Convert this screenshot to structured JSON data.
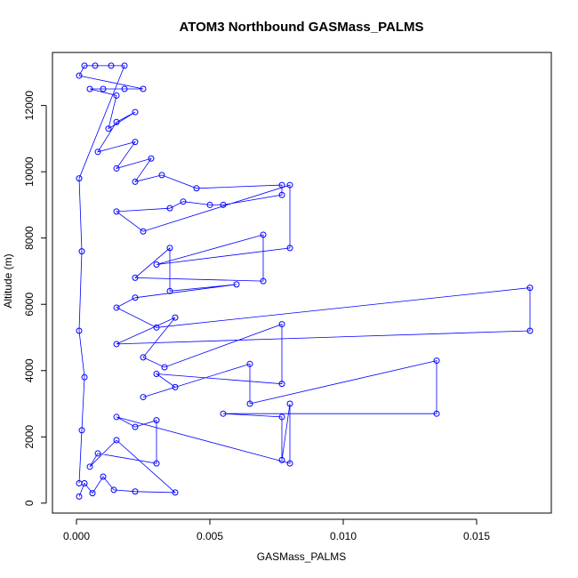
{
  "chart_data": {
    "type": "scatter",
    "title": "ATOM3 Northbound GASMass_PALMS",
    "xlabel": "GASMass_PALMS",
    "ylabel": "Altitude (m)",
    "xlim": [
      -0.0009,
      0.0178
    ],
    "ylim": [
      -300,
      13600
    ],
    "x_ticks": [
      0,
      0.005,
      0.01,
      0.015
    ],
    "x_tick_labels": [
      "0.000",
      "0.005",
      "0.010",
      "0.015"
    ],
    "y_ticks": [
      0,
      2000,
      4000,
      6000,
      8000,
      10000,
      12000
    ],
    "y_tick_labels": [
      "0",
      "2000",
      "4000",
      "6000",
      "8000",
      "10000",
      "12000"
    ],
    "marker": "open-circle",
    "lines": true,
    "color": "#0000ff",
    "points": [
      [
        0.0001,
        200
      ],
      [
        0.0003,
        600
      ],
      [
        0.0006,
        300
      ],
      [
        0.001,
        800
      ],
      [
        0.0014,
        400
      ],
      [
        0.0022,
        350
      ],
      [
        0.0037,
        320
      ],
      [
        0.0015,
        1900
      ],
      [
        0.0005,
        1100
      ],
      [
        0.0008,
        1500
      ],
      [
        0.003,
        1200
      ],
      [
        0.003,
        2500
      ],
      [
        0.0022,
        2300
      ],
      [
        0.0015,
        2600
      ],
      [
        0.008,
        1200
      ],
      [
        0.008,
        3000
      ],
      [
        0.0077,
        1300
      ],
      [
        0.0077,
        2600
      ],
      [
        0.0055,
        2700
      ],
      [
        0.0135,
        2700
      ],
      [
        0.0135,
        4300
      ],
      [
        0.0065,
        3000
      ],
      [
        0.0065,
        4200
      ],
      [
        0.0025,
        3200
      ],
      [
        0.0037,
        3500
      ],
      [
        0.003,
        3900
      ],
      [
        0.0077,
        3600
      ],
      [
        0.0077,
        5400
      ],
      [
        0.0033,
        4100
      ],
      [
        0.0025,
        4400
      ],
      [
        0.0037,
        5600
      ],
      [
        0.0015,
        4800
      ],
      [
        0.017,
        5200
      ],
      [
        0.017,
        6500
      ],
      [
        0.003,
        5300
      ],
      [
        0.0015,
        5900
      ],
      [
        0.0022,
        6200
      ],
      [
        0.006,
        6600
      ],
      [
        0.0035,
        6400
      ],
      [
        0.0035,
        7700
      ],
      [
        0.0022,
        6800
      ],
      [
        0.007,
        6700
      ],
      [
        0.007,
        8100
      ],
      [
        0.003,
        7200
      ],
      [
        0.008,
        7700
      ],
      [
        0.008,
        9600
      ],
      [
        0.0025,
        8200
      ],
      [
        0.0015,
        8800
      ],
      [
        0.0035,
        8900
      ],
      [
        0.004,
        9100
      ],
      [
        0.005,
        9000
      ],
      [
        0.0055,
        9000
      ],
      [
        0.0077,
        9300
      ],
      [
        0.0077,
        9600
      ],
      [
        0.0045,
        9500
      ],
      [
        0.0032,
        9900
      ],
      [
        0.0022,
        9700
      ],
      [
        0.0028,
        10400
      ],
      [
        0.0015,
        10100
      ],
      [
        0.0022,
        10900
      ],
      [
        0.0008,
        10600
      ],
      [
        0.0015,
        11500
      ],
      [
        0.0022,
        11800
      ],
      [
        0.0012,
        11300
      ],
      [
        0.0015,
        12300
      ],
      [
        0.0005,
        12500
      ],
      [
        0.001,
        12500
      ],
      [
        0.0018,
        12500
      ],
      [
        0.0025,
        12500
      ],
      [
        0.0001,
        12900
      ],
      [
        0.0003,
        13200
      ],
      [
        0.0007,
        13200
      ],
      [
        0.0013,
        13200
      ],
      [
        0.0018,
        13200
      ],
      [
        0.0001,
        9800
      ],
      [
        0.0002,
        7600
      ],
      [
        0.0001,
        5200
      ],
      [
        0.0003,
        3800
      ],
      [
        0.0002,
        2200
      ],
      [
        0.0001,
        600
      ]
    ]
  }
}
